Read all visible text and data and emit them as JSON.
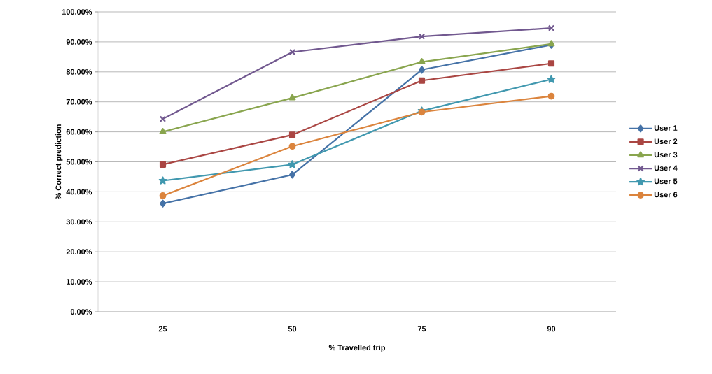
{
  "chart_data": {
    "type": "line",
    "xlabel": "% Travelled trip",
    "ylabel": "% Correct prediction",
    "categories": [
      "25",
      "50",
      "75",
      "90"
    ],
    "ylim": [
      0,
      100
    ],
    "yticks": [
      {
        "value": 0,
        "label": "0.00%"
      },
      {
        "value": 10,
        "label": "10.00%"
      },
      {
        "value": 20,
        "label": "20.00%"
      },
      {
        "value": 30,
        "label": "30.00%"
      },
      {
        "value": 40,
        "label": "40.00%"
      },
      {
        "value": 50,
        "label": "50.00%"
      },
      {
        "value": 60,
        "label": "60.00%"
      },
      {
        "value": 70,
        "label": "70.00%"
      },
      {
        "value": 80,
        "label": "80.00%"
      },
      {
        "value": 90,
        "label": "90.00%"
      },
      {
        "value": 100,
        "label": "100.00%"
      }
    ],
    "grid": "y",
    "legend": "right",
    "series": [
      {
        "name": "User 1",
        "color": "#4572a7",
        "marker": "diamond",
        "values": [
          36.1,
          45.7,
          80.7,
          89.0
        ]
      },
      {
        "name": "User 2",
        "color": "#aa4643",
        "marker": "square",
        "values": [
          49.1,
          59.0,
          77.1,
          82.8
        ]
      },
      {
        "name": "User 3",
        "color": "#89a54e",
        "marker": "triangle",
        "values": [
          60.0,
          71.3,
          83.3,
          89.3
        ]
      },
      {
        "name": "User 4",
        "color": "#71588f",
        "marker": "cross",
        "values": [
          64.3,
          86.6,
          91.8,
          94.6
        ]
      },
      {
        "name": "User 5",
        "color": "#4198af",
        "marker": "star",
        "values": [
          43.7,
          49.1,
          67.0,
          77.5
        ]
      },
      {
        "name": "User 6",
        "color": "#db843d",
        "marker": "circle",
        "values": [
          38.7,
          55.2,
          66.6,
          71.9
        ]
      }
    ]
  }
}
